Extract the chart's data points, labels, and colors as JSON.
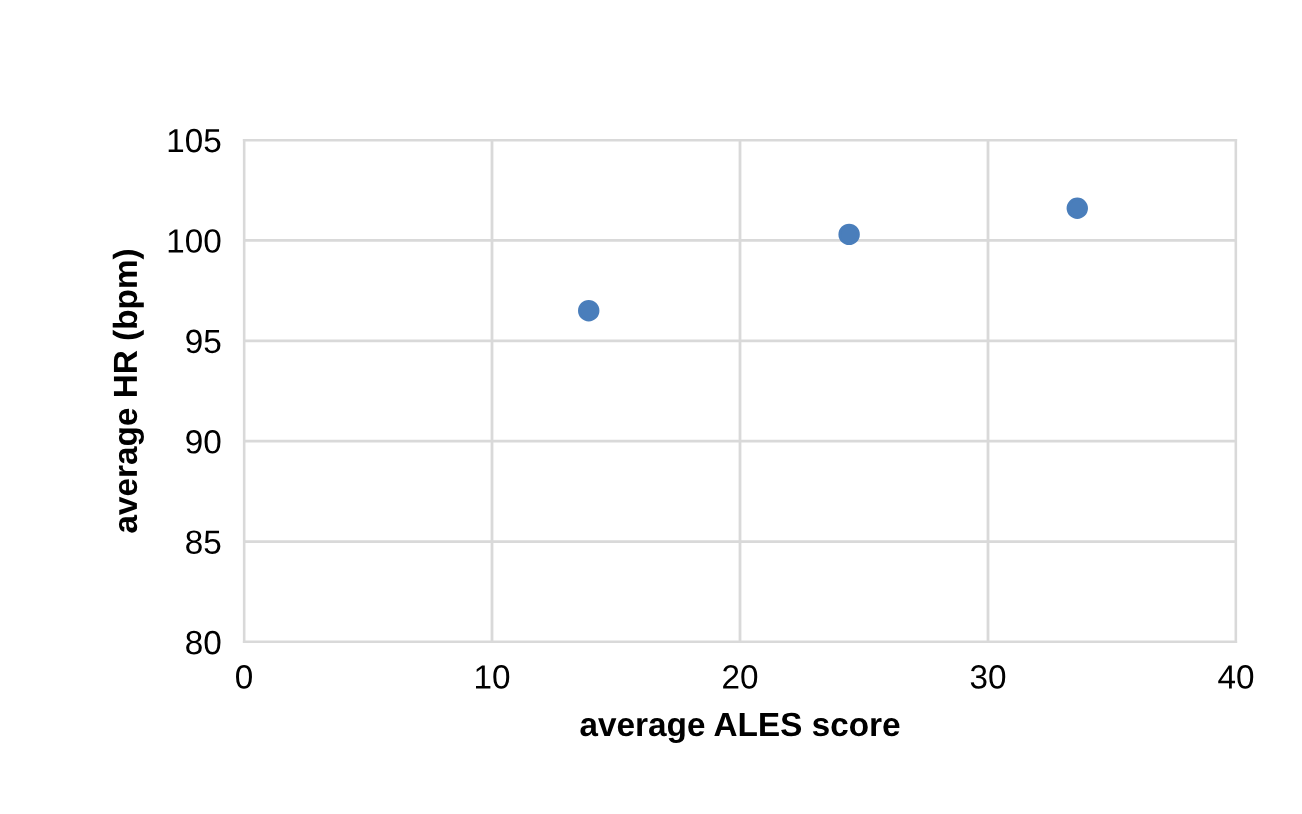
{
  "chart_data": {
    "type": "scatter",
    "xlabel": "average ALES score",
    "ylabel": "average HR (bpm)",
    "x": [
      13.9,
      24.4,
      33.6
    ],
    "series": [
      {
        "color": "#4a7ebb",
        "values": [
          96.5,
          100.3,
          101.6
        ]
      }
    ],
    "xlim": [
      0,
      40
    ],
    "xticks": [
      0,
      10,
      20,
      30,
      40
    ],
    "ylim": [
      80,
      105
    ],
    "yticks": [
      80,
      85,
      90,
      95,
      100,
      105
    ],
    "grid": true,
    "marker": "circle"
  }
}
